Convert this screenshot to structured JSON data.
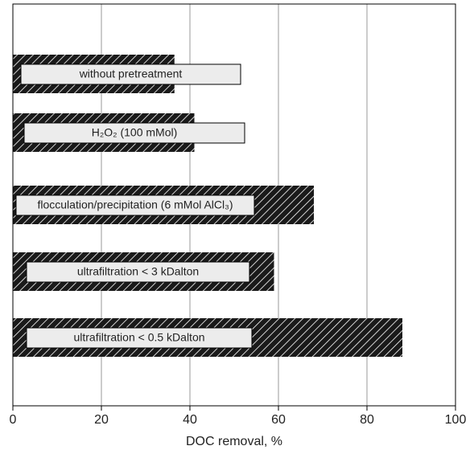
{
  "chart_data": {
    "type": "bar",
    "orientation": "horizontal",
    "categories": [
      "without pretreatment",
      "H₂O₂ (100 mMol)",
      "flocculation/precipitation (6 mMol AlCl₃)",
      "ultrafiltration < 3 kDalton",
      "ultrafiltration < 0.5 kDalton"
    ],
    "values": [
      36.5,
      41,
      68,
      59,
      88
    ],
    "color": "#1a1a1a",
    "xlabel": "DOC removal, %",
    "xlim": [
      0,
      100
    ],
    "xticks": [
      0,
      20,
      40,
      60,
      80,
      100
    ],
    "grid": true
  }
}
